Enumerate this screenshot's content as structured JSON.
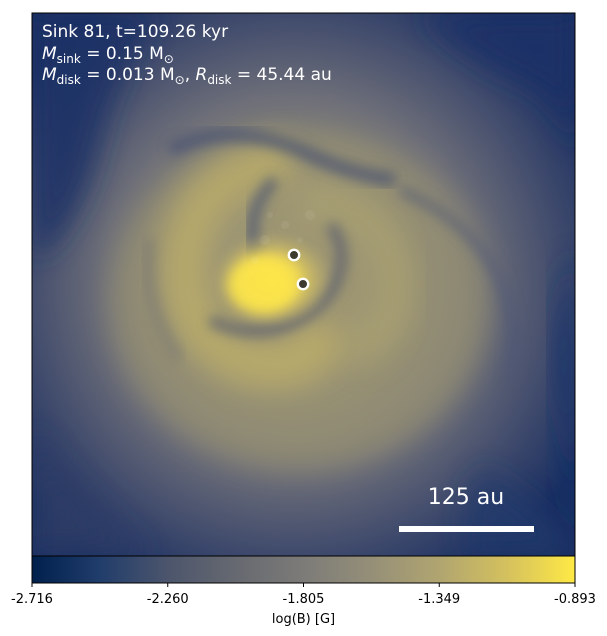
{
  "panel": {
    "title": "Sink 81, t=109.26 kyr",
    "msink": {
      "symbol": "M",
      "sub": "sink",
      "rest": " = 0.15 M",
      "sun_sub": "⊙"
    },
    "mdisk": {
      "symbol": "M",
      "sub": "disk",
      "rest": " = 0.013 M",
      "sun_sub": "⊙",
      "sep": ", ",
      "r_symbol": "R",
      "r_sub": "disk",
      "r_rest": " = 45.44 au"
    },
    "scale_bar_label": "125 au"
  },
  "colorbar": {
    "label": "log(B) [G]",
    "colormap": "cividis",
    "ticks": [
      "-2.716",
      "-2.260",
      "-1.805",
      "-1.349",
      "-0.893"
    ],
    "range": [
      -2.716,
      -0.893
    ]
  },
  "colors": {
    "low": "#00204c",
    "mid": "#7c7b78",
    "high": "#ffe945",
    "annotation": "#ffffff",
    "sink_marker_edge": "#ffffff",
    "sink_marker_fill": "#3d3a2f"
  },
  "sinks": {
    "count": 2
  }
}
